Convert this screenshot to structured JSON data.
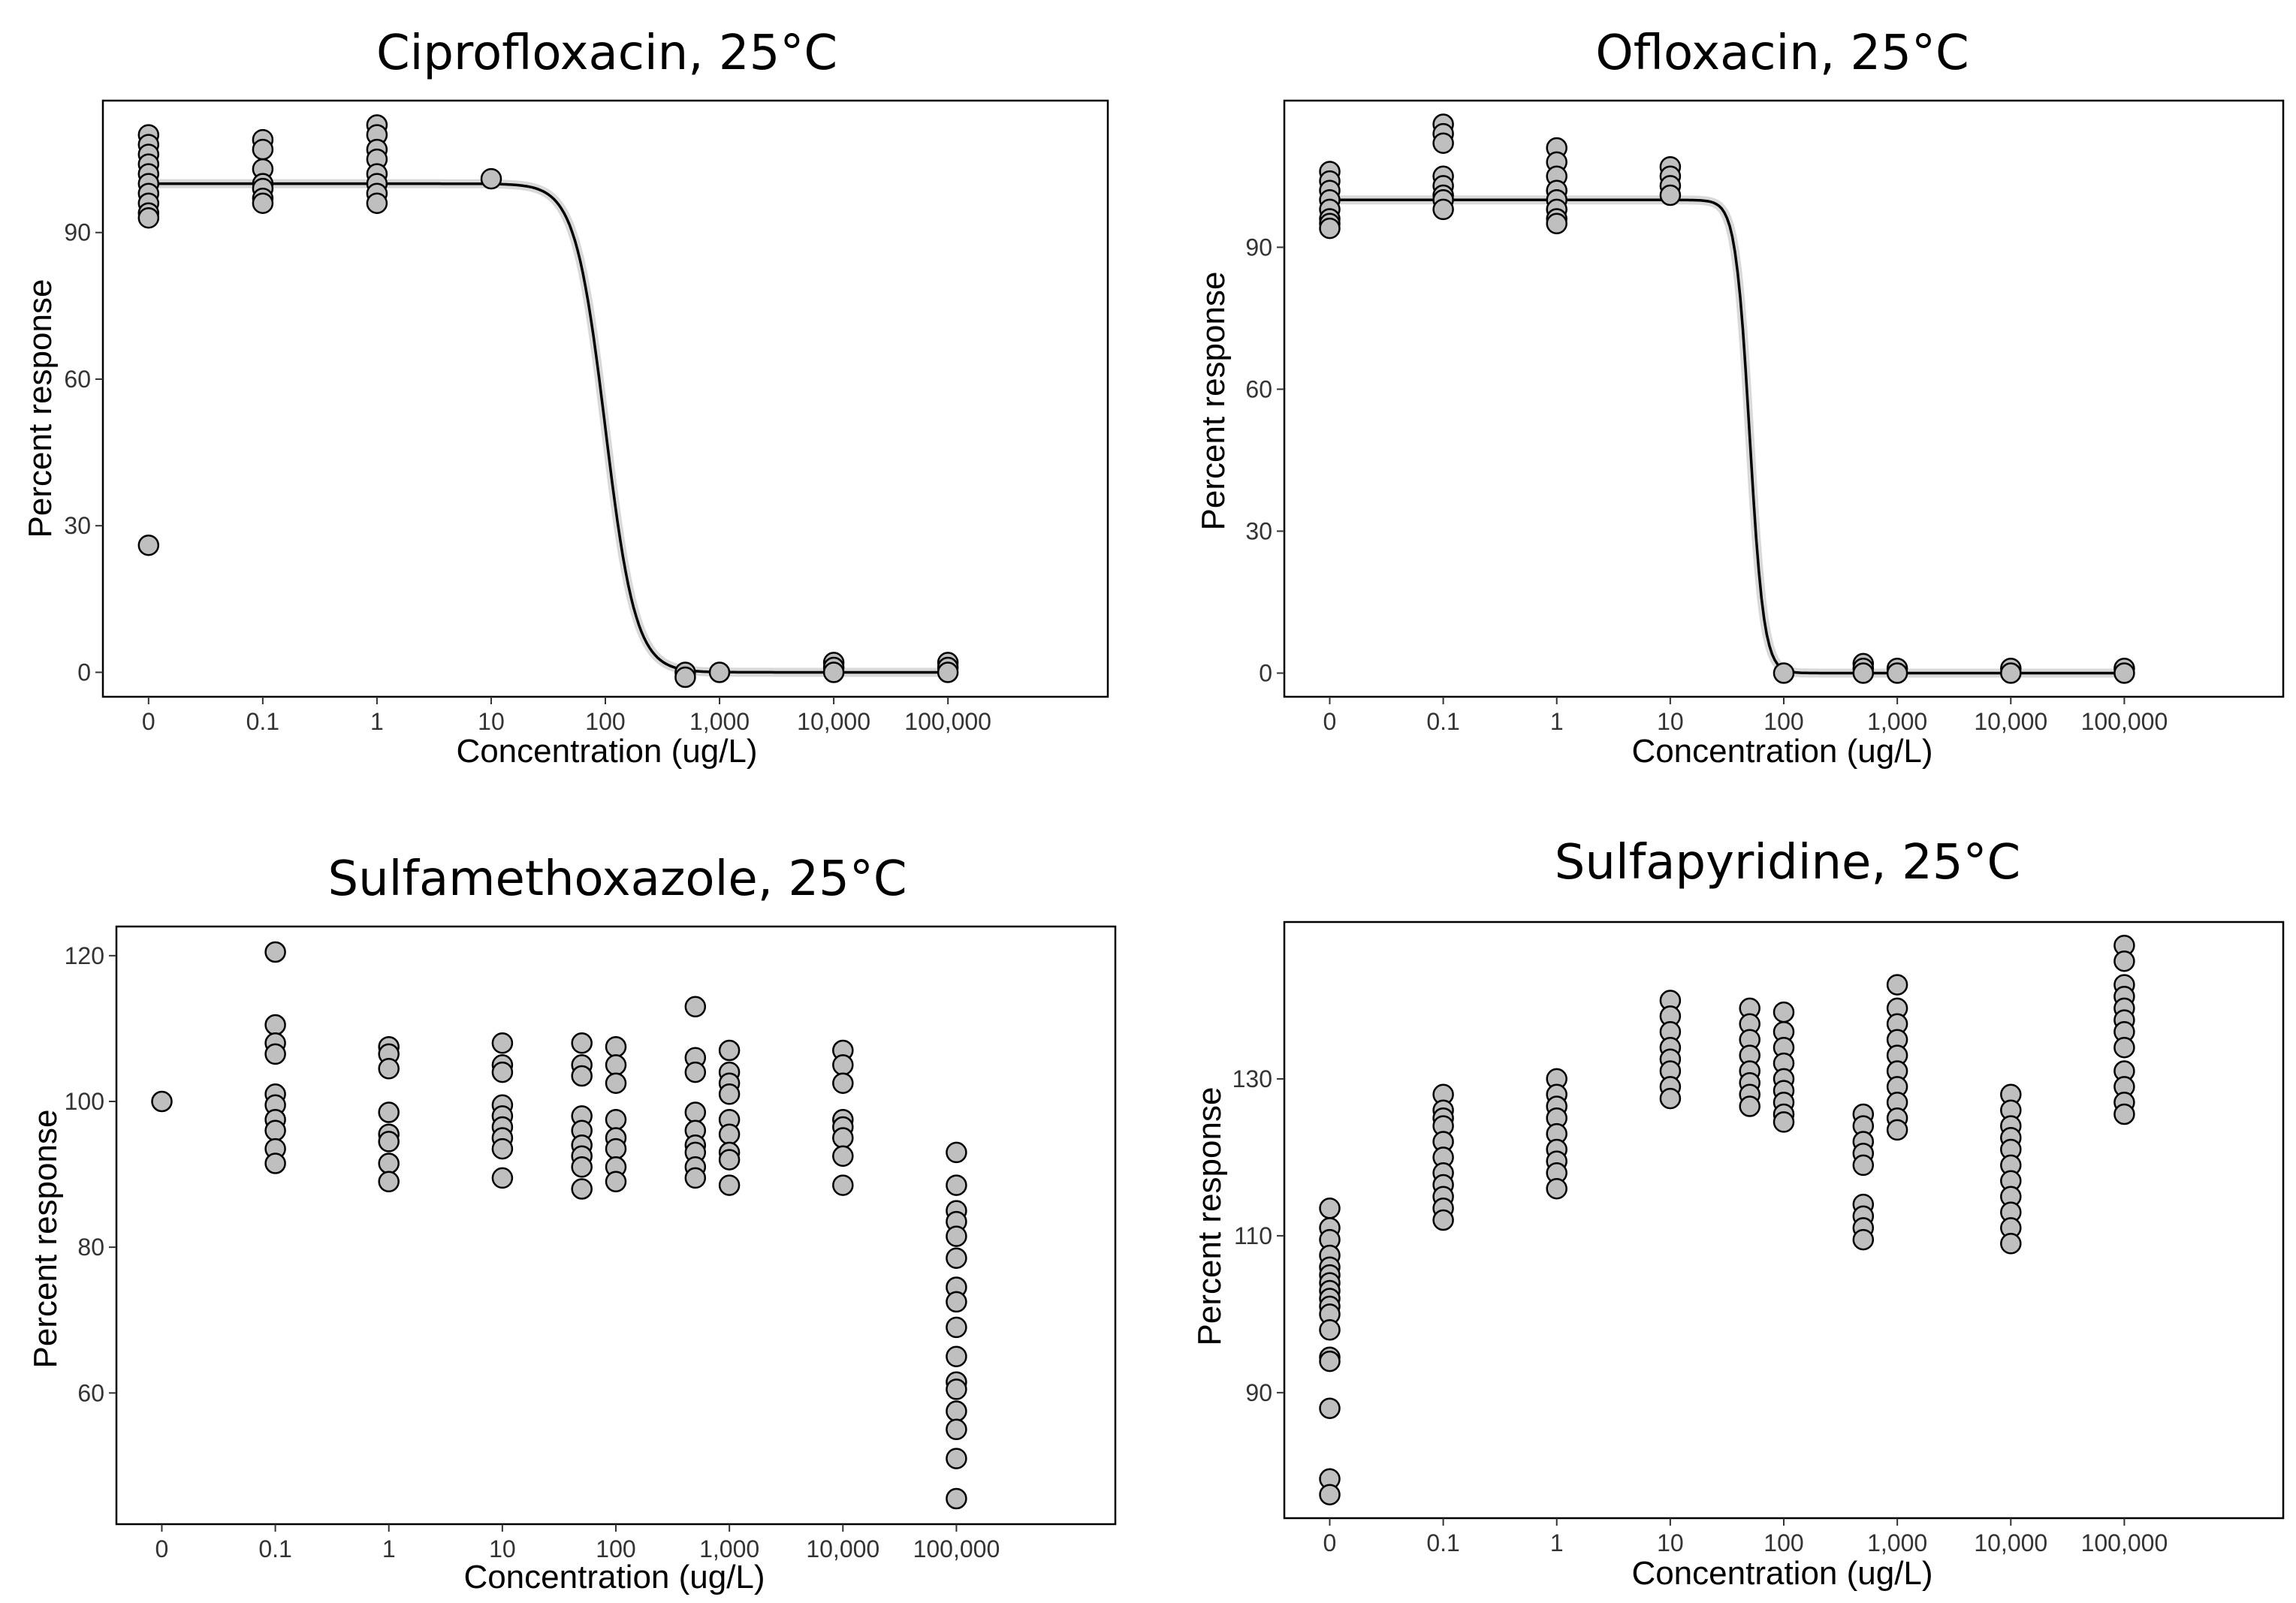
{
  "chart_data": [
    {
      "type": "scatter",
      "title": "Ciprofloxacin, 25°C",
      "xlabel": "Concentration (ug/L)",
      "ylabel": "Percent response",
      "x_ticks": [
        "0",
        "0.1",
        "1",
        "10",
        "100",
        "1,000",
        "10,000",
        "100,000"
      ],
      "x_positions": [
        0,
        1,
        2,
        3,
        4,
        5,
        6,
        7
      ],
      "xlim": [
        -0.4,
        8.4
      ],
      "y_ticks": [
        0,
        30,
        60,
        90
      ],
      "ylim": [
        -5,
        117
      ],
      "fit": {
        "model": "log-logistic",
        "top": 100,
        "bottom": 0,
        "ec50_position": 4.0,
        "slope": 3.3
      },
      "points": [
        {
          "x": 0,
          "y": 110
        },
        {
          "x": 0,
          "y": 108
        },
        {
          "x": 0,
          "y": 106
        },
        {
          "x": 0,
          "y": 104
        },
        {
          "x": 0,
          "y": 102
        },
        {
          "x": 0,
          "y": 100
        },
        {
          "x": 0,
          "y": 98
        },
        {
          "x": 0,
          "y": 96
        },
        {
          "x": 0,
          "y": 94
        },
        {
          "x": 0,
          "y": 93
        },
        {
          "x": 0,
          "y": 26
        },
        {
          "x": 1,
          "y": 109
        },
        {
          "x": 1,
          "y": 107
        },
        {
          "x": 1,
          "y": 103
        },
        {
          "x": 1,
          "y": 100
        },
        {
          "x": 1,
          "y": 99
        },
        {
          "x": 1,
          "y": 97
        },
        {
          "x": 1,
          "y": 96
        },
        {
          "x": 2,
          "y": 112
        },
        {
          "x": 2,
          "y": 110
        },
        {
          "x": 2,
          "y": 107
        },
        {
          "x": 2,
          "y": 105
        },
        {
          "x": 2,
          "y": 102
        },
        {
          "x": 2,
          "y": 100
        },
        {
          "x": 2,
          "y": 98
        },
        {
          "x": 2,
          "y": 96
        },
        {
          "x": 3,
          "y": 101
        },
        {
          "x": 4.7,
          "y": 0
        },
        {
          "x": 4.7,
          "y": -1
        },
        {
          "x": 5,
          "y": 0
        },
        {
          "x": 6,
          "y": 2
        },
        {
          "x": 6,
          "y": 1
        },
        {
          "x": 6,
          "y": 0
        },
        {
          "x": 7,
          "y": 2
        },
        {
          "x": 7,
          "y": 1
        },
        {
          "x": 7,
          "y": 0
        }
      ]
    },
    {
      "type": "scatter",
      "title": "Ofloxacin, 25°C",
      "xlabel": "Concentration (ug/L)",
      "ylabel": "Percent response",
      "x_ticks": [
        "0",
        "0.1",
        "1",
        "10",
        "100",
        "1,000",
        "10,000",
        "100,000"
      ],
      "x_positions": [
        0,
        1,
        2,
        3,
        4,
        5,
        6,
        7
      ],
      "xlim": [
        -0.4,
        8.4
      ],
      "y_ticks": [
        0,
        30,
        60,
        90
      ],
      "ylim": [
        -5,
        121
      ],
      "fit": {
        "model": "log-logistic",
        "top": 100,
        "bottom": 0,
        "ec50_position": 3.7,
        "slope": 7.0
      },
      "points": [
        {
          "x": 0,
          "y": 106
        },
        {
          "x": 0,
          "y": 104
        },
        {
          "x": 0,
          "y": 102
        },
        {
          "x": 0,
          "y": 100
        },
        {
          "x": 0,
          "y": 98
        },
        {
          "x": 0,
          "y": 96
        },
        {
          "x": 0,
          "y": 95
        },
        {
          "x": 0,
          "y": 94
        },
        {
          "x": 1,
          "y": 116
        },
        {
          "x": 1,
          "y": 114
        },
        {
          "x": 1,
          "y": 112
        },
        {
          "x": 1,
          "y": 105
        },
        {
          "x": 1,
          "y": 103
        },
        {
          "x": 1,
          "y": 101
        },
        {
          "x": 1,
          "y": 100
        },
        {
          "x": 1,
          "y": 98
        },
        {
          "x": 2,
          "y": 111
        },
        {
          "x": 2,
          "y": 108
        },
        {
          "x": 2,
          "y": 105
        },
        {
          "x": 2,
          "y": 102
        },
        {
          "x": 2,
          "y": 100
        },
        {
          "x": 2,
          "y": 98
        },
        {
          "x": 2,
          "y": 96
        },
        {
          "x": 2,
          "y": 95
        },
        {
          "x": 3,
          "y": 107
        },
        {
          "x": 3,
          "y": 105
        },
        {
          "x": 3,
          "y": 103
        },
        {
          "x": 3,
          "y": 101
        },
        {
          "x": 4,
          "y": 0
        },
        {
          "x": 4.7,
          "y": 2
        },
        {
          "x": 4.7,
          "y": 1
        },
        {
          "x": 4.7,
          "y": 0
        },
        {
          "x": 5,
          "y": 1
        },
        {
          "x": 5,
          "y": 0
        },
        {
          "x": 6,
          "y": 1
        },
        {
          "x": 6,
          "y": 0
        },
        {
          "x": 7,
          "y": 1
        },
        {
          "x": 7,
          "y": 0
        }
      ]
    },
    {
      "type": "scatter",
      "title": "Sulfamethoxazole, 25°C",
      "xlabel": "Concentration (ug/L)",
      "ylabel": "Percent response",
      "x_ticks": [
        "0",
        "0.1",
        "1",
        "10",
        "100",
        "1,000",
        "10,000",
        "100,000"
      ],
      "x_positions": [
        0,
        1,
        2,
        3,
        4,
        5,
        6,
        7
      ],
      "xlim": [
        -0.4,
        8.4
      ],
      "y_ticks": [
        60,
        80,
        100,
        120
      ],
      "ylim": [
        42,
        124
      ],
      "points": [
        {
          "x": 0,
          "y": 100
        },
        {
          "x": 1,
          "y": 120.5
        },
        {
          "x": 1,
          "y": 110.5
        },
        {
          "x": 1,
          "y": 108
        },
        {
          "x": 1,
          "y": 106.5
        },
        {
          "x": 1,
          "y": 101
        },
        {
          "x": 1,
          "y": 99.5
        },
        {
          "x": 1,
          "y": 97.5
        },
        {
          "x": 1,
          "y": 96
        },
        {
          "x": 1,
          "y": 93.5
        },
        {
          "x": 1,
          "y": 91.5
        },
        {
          "x": 2,
          "y": 107.5
        },
        {
          "x": 2,
          "y": 106.5
        },
        {
          "x": 2,
          "y": 104.5
        },
        {
          "x": 2,
          "y": 98.5
        },
        {
          "x": 2,
          "y": 95.5
        },
        {
          "x": 2,
          "y": 94.5
        },
        {
          "x": 2,
          "y": 91.5
        },
        {
          "x": 2,
          "y": 89
        },
        {
          "x": 3,
          "y": 108
        },
        {
          "x": 3,
          "y": 105
        },
        {
          "x": 3,
          "y": 104
        },
        {
          "x": 3,
          "y": 99.5
        },
        {
          "x": 3,
          "y": 98
        },
        {
          "x": 3,
          "y": 96.5
        },
        {
          "x": 3,
          "y": 95
        },
        {
          "x": 3,
          "y": 93.5
        },
        {
          "x": 3,
          "y": 89.5
        },
        {
          "x": 3.7,
          "y": 108
        },
        {
          "x": 3.7,
          "y": 105
        },
        {
          "x": 3.7,
          "y": 103.5
        },
        {
          "x": 3.7,
          "y": 98
        },
        {
          "x": 3.7,
          "y": 96
        },
        {
          "x": 3.7,
          "y": 94
        },
        {
          "x": 3.7,
          "y": 92.5
        },
        {
          "x": 3.7,
          "y": 91
        },
        {
          "x": 3.7,
          "y": 88
        },
        {
          "x": 4,
          "y": 107.5
        },
        {
          "x": 4,
          "y": 105
        },
        {
          "x": 4,
          "y": 102.5
        },
        {
          "x": 4,
          "y": 97.5
        },
        {
          "x": 4,
          "y": 95
        },
        {
          "x": 4,
          "y": 93.5
        },
        {
          "x": 4,
          "y": 91
        },
        {
          "x": 4,
          "y": 89
        },
        {
          "x": 4.7,
          "y": 113
        },
        {
          "x": 4.7,
          "y": 106
        },
        {
          "x": 4.7,
          "y": 104
        },
        {
          "x": 4.7,
          "y": 98.5
        },
        {
          "x": 4.7,
          "y": 96
        },
        {
          "x": 4.7,
          "y": 94
        },
        {
          "x": 4.7,
          "y": 93
        },
        {
          "x": 4.7,
          "y": 91
        },
        {
          "x": 4.7,
          "y": 89.5
        },
        {
          "x": 5,
          "y": 107
        },
        {
          "x": 5,
          "y": 104
        },
        {
          "x": 5,
          "y": 102.5
        },
        {
          "x": 5,
          "y": 101
        },
        {
          "x": 5,
          "y": 97.5
        },
        {
          "x": 5,
          "y": 95.5
        },
        {
          "x": 5,
          "y": 93
        },
        {
          "x": 5,
          "y": 92
        },
        {
          "x": 5,
          "y": 88.5
        },
        {
          "x": 6,
          "y": 107
        },
        {
          "x": 6,
          "y": 105
        },
        {
          "x": 6,
          "y": 102.5
        },
        {
          "x": 6,
          "y": 97.5
        },
        {
          "x": 6,
          "y": 96.5
        },
        {
          "x": 6,
          "y": 95
        },
        {
          "x": 6,
          "y": 92.5
        },
        {
          "x": 6,
          "y": 88.5
        },
        {
          "x": 7,
          "y": 93
        },
        {
          "x": 7,
          "y": 88.5
        },
        {
          "x": 7,
          "y": 85
        },
        {
          "x": 7,
          "y": 83.5
        },
        {
          "x": 7,
          "y": 81.5
        },
        {
          "x": 7,
          "y": 78.5
        },
        {
          "x": 7,
          "y": 74.5
        },
        {
          "x": 7,
          "y": 72.5
        },
        {
          "x": 7,
          "y": 69
        },
        {
          "x": 7,
          "y": 65
        },
        {
          "x": 7,
          "y": 61.5
        },
        {
          "x": 7,
          "y": 60.5
        },
        {
          "x": 7,
          "y": 57.5
        },
        {
          "x": 7,
          "y": 55
        },
        {
          "x": 7,
          "y": 51
        },
        {
          "x": 7,
          "y": 45.5
        }
      ]
    },
    {
      "type": "scatter",
      "title": "Sulfapyridine, 25°C",
      "xlabel": "Concentration (ug/L)",
      "ylabel": "Percent response",
      "x_ticks": [
        "0",
        "0.1",
        "1",
        "10",
        "100",
        "1,000",
        "10,000",
        "100,000"
      ],
      "x_positions": [
        0,
        1,
        2,
        3,
        4,
        5,
        6,
        7
      ],
      "xlim": [
        -0.4,
        8.4
      ],
      "y_ticks": [
        90,
        110,
        130
      ],
      "ylim": [
        74,
        150
      ],
      "points": [
        {
          "x": 0,
          "y": 113.5
        },
        {
          "x": 0,
          "y": 111
        },
        {
          "x": 0,
          "y": 109.5
        },
        {
          "x": 0,
          "y": 107.5
        },
        {
          "x": 0,
          "y": 106
        },
        {
          "x": 0,
          "y": 105
        },
        {
          "x": 0,
          "y": 104
        },
        {
          "x": 0,
          "y": 103
        },
        {
          "x": 0,
          "y": 102
        },
        {
          "x": 0,
          "y": 101
        },
        {
          "x": 0,
          "y": 100
        },
        {
          "x": 0,
          "y": 98
        },
        {
          "x": 0,
          "y": 94.5
        },
        {
          "x": 0,
          "y": 94
        },
        {
          "x": 0,
          "y": 88
        },
        {
          "x": 0,
          "y": 79
        },
        {
          "x": 0,
          "y": 77
        },
        {
          "x": 1,
          "y": 128
        },
        {
          "x": 1,
          "y": 126
        },
        {
          "x": 1,
          "y": 125
        },
        {
          "x": 1,
          "y": 124
        },
        {
          "x": 1,
          "y": 122
        },
        {
          "x": 1,
          "y": 120
        },
        {
          "x": 1,
          "y": 118
        },
        {
          "x": 1,
          "y": 116.5
        },
        {
          "x": 1,
          "y": 115
        },
        {
          "x": 1,
          "y": 113.5
        },
        {
          "x": 1,
          "y": 112
        },
        {
          "x": 2,
          "y": 130
        },
        {
          "x": 2,
          "y": 128
        },
        {
          "x": 2,
          "y": 126.5
        },
        {
          "x": 2,
          "y": 125
        },
        {
          "x": 2,
          "y": 123
        },
        {
          "x": 2,
          "y": 121
        },
        {
          "x": 2,
          "y": 119.5
        },
        {
          "x": 2,
          "y": 118
        },
        {
          "x": 2,
          "y": 116
        },
        {
          "x": 3,
          "y": 140
        },
        {
          "x": 3,
          "y": 138
        },
        {
          "x": 3,
          "y": 136
        },
        {
          "x": 3,
          "y": 134
        },
        {
          "x": 3,
          "y": 132.5
        },
        {
          "x": 3,
          "y": 131
        },
        {
          "x": 3,
          "y": 129
        },
        {
          "x": 3,
          "y": 127.5
        },
        {
          "x": 3.7,
          "y": 139
        },
        {
          "x": 3.7,
          "y": 137
        },
        {
          "x": 3.7,
          "y": 135
        },
        {
          "x": 3.7,
          "y": 133
        },
        {
          "x": 3.7,
          "y": 131
        },
        {
          "x": 3.7,
          "y": 129.5
        },
        {
          "x": 3.7,
          "y": 128
        },
        {
          "x": 3.7,
          "y": 126.5
        },
        {
          "x": 4,
          "y": 138.5
        },
        {
          "x": 4,
          "y": 136
        },
        {
          "x": 4,
          "y": 134
        },
        {
          "x": 4,
          "y": 132
        },
        {
          "x": 4,
          "y": 130
        },
        {
          "x": 4,
          "y": 128.5
        },
        {
          "x": 4,
          "y": 127
        },
        {
          "x": 4,
          "y": 125.5
        },
        {
          "x": 4,
          "y": 124.5
        },
        {
          "x": 4.7,
          "y": 125.5
        },
        {
          "x": 4.7,
          "y": 124
        },
        {
          "x": 4.7,
          "y": 122
        },
        {
          "x": 4.7,
          "y": 120.5
        },
        {
          "x": 4.7,
          "y": 119
        },
        {
          "x": 4.7,
          "y": 114
        },
        {
          "x": 4.7,
          "y": 112.5
        },
        {
          "x": 4.7,
          "y": 111
        },
        {
          "x": 4.7,
          "y": 109.5
        },
        {
          "x": 5,
          "y": 142
        },
        {
          "x": 5,
          "y": 139
        },
        {
          "x": 5,
          "y": 137
        },
        {
          "x": 5,
          "y": 135
        },
        {
          "x": 5,
          "y": 133
        },
        {
          "x": 5,
          "y": 131
        },
        {
          "x": 5,
          "y": 129
        },
        {
          "x": 5,
          "y": 127
        },
        {
          "x": 5,
          "y": 125
        },
        {
          "x": 5,
          "y": 123.5
        },
        {
          "x": 6,
          "y": 128
        },
        {
          "x": 6,
          "y": 126
        },
        {
          "x": 6,
          "y": 124
        },
        {
          "x": 6,
          "y": 122.5
        },
        {
          "x": 6,
          "y": 121
        },
        {
          "x": 6,
          "y": 119
        },
        {
          "x": 6,
          "y": 117
        },
        {
          "x": 6,
          "y": 115
        },
        {
          "x": 6,
          "y": 113
        },
        {
          "x": 6,
          "y": 111
        },
        {
          "x": 6,
          "y": 109
        },
        {
          "x": 7,
          "y": 147
        },
        {
          "x": 7,
          "y": 145
        },
        {
          "x": 7,
          "y": 142
        },
        {
          "x": 7,
          "y": 140.5
        },
        {
          "x": 7,
          "y": 139
        },
        {
          "x": 7,
          "y": 137.5
        },
        {
          "x": 7,
          "y": 136
        },
        {
          "x": 7,
          "y": 134
        },
        {
          "x": 7,
          "y": 131
        },
        {
          "x": 7,
          "y": 129
        },
        {
          "x": 7,
          "y": 127
        },
        {
          "x": 7,
          "y": 125.5
        }
      ]
    }
  ]
}
